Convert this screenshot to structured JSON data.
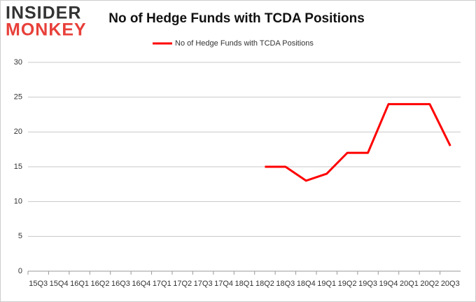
{
  "logo": {
    "line1": "INSIDER",
    "line2": "MONKEY"
  },
  "chart_data": {
    "type": "line",
    "title": "No of Hedge Funds with TCDA Positions",
    "categories": [
      "15Q3",
      "15Q4",
      "16Q1",
      "16Q2",
      "16Q3",
      "16Q4",
      "17Q1",
      "17Q2",
      "17Q3",
      "17Q4",
      "18Q1",
      "18Q2",
      "18Q3",
      "18Q4",
      "19Q1",
      "19Q2",
      "19Q3",
      "19Q4",
      "20Q1",
      "20Q2",
      "20Q3"
    ],
    "series": [
      {
        "name": "No of Hedge Funds with TCDA Positions",
        "color": "#ff0000",
        "values": [
          null,
          null,
          null,
          null,
          null,
          null,
          null,
          null,
          null,
          null,
          null,
          15,
          15,
          13,
          14,
          17,
          17,
          24,
          24,
          24,
          18
        ]
      }
    ],
    "ylim": [
      0,
      30
    ],
    "yticks": [
      0,
      5,
      10,
      15,
      20,
      25,
      30
    ],
    "grid": true,
    "legend": "top"
  }
}
